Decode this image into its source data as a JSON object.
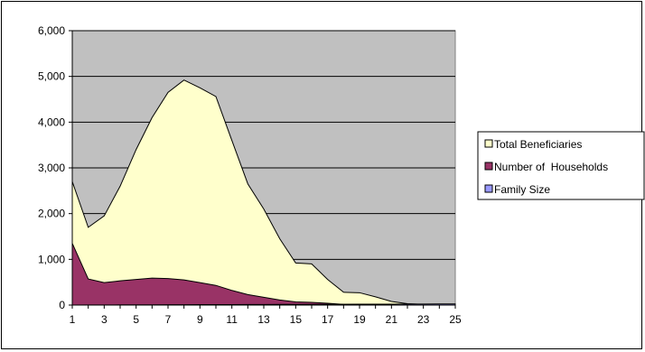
{
  "chart_data": {
    "type": "area",
    "stacked": false,
    "title": "",
    "xlabel": "",
    "ylabel": "",
    "x": [
      1,
      2,
      3,
      4,
      5,
      6,
      7,
      8,
      9,
      10,
      11,
      12,
      13,
      14,
      15,
      16,
      17,
      18,
      19,
      20,
      21,
      22,
      23,
      24,
      25
    ],
    "xticks": [
      1,
      3,
      5,
      7,
      9,
      11,
      13,
      15,
      17,
      19,
      21,
      23,
      25
    ],
    "ylim": [
      0,
      6000
    ],
    "yticks": [
      0,
      1000,
      2000,
      3000,
      4000,
      5000,
      6000
    ],
    "ytick_labels": [
      "0",
      "1,000",
      "2,000",
      "3,000",
      "4,000",
      "5,000",
      "6,000"
    ],
    "grid": true,
    "legend_position": "right",
    "plot_background": "#c0c0c0",
    "series": [
      {
        "name": "Total Beneficiaries",
        "color": "#ffffcc",
        "values": [
          2700,
          1700,
          1950,
          2600,
          3400,
          4100,
          4650,
          4920,
          4750,
          4560,
          3600,
          2650,
          2100,
          1450,
          920,
          900,
          560,
          280,
          270,
          180,
          80,
          30,
          15,
          10,
          5
        ]
      },
      {
        "name": "Number of  Households",
        "color": "#993366",
        "values": [
          1350,
          570,
          490,
          530,
          560,
          590,
          580,
          550,
          490,
          430,
          320,
          230,
          170,
          110,
          70,
          60,
          40,
          15,
          15,
          10,
          5,
          3,
          2,
          1,
          1
        ]
      },
      {
        "name": "Family Size",
        "color": "#9999ff",
        "values": [
          1,
          2,
          3,
          4,
          5,
          6,
          7,
          8,
          9,
          10,
          11,
          12,
          13,
          14,
          15,
          16,
          17,
          18,
          19,
          20,
          21,
          22,
          23,
          24,
          25
        ]
      }
    ]
  }
}
